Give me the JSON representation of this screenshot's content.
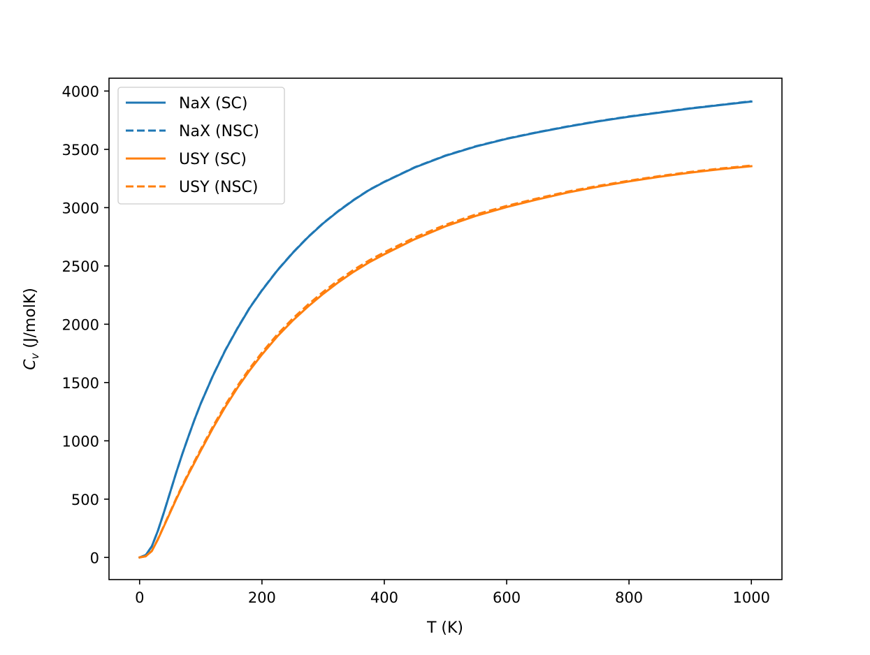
{
  "chart_data": {
    "type": "line",
    "xlabel": "T (K)",
    "ylabel_main": "C",
    "ylabel_sub": "v",
    "ylabel_rest": " (J/molK)",
    "xlim": [
      -50,
      1050
    ],
    "ylim": [
      -190,
      4110
    ],
    "xticks": [
      0,
      200,
      400,
      600,
      800,
      1000
    ],
    "yticks": [
      0,
      500,
      1000,
      1500,
      2000,
      2500,
      3000,
      3500,
      4000
    ],
    "legend_position": "upper left",
    "x": [
      0,
      10,
      20,
      30,
      40,
      50,
      60,
      70,
      80,
      90,
      100,
      120,
      140,
      160,
      180,
      200,
      225,
      250,
      275,
      300,
      325,
      350,
      375,
      400,
      450,
      500,
      550,
      600,
      650,
      700,
      750,
      800,
      850,
      900,
      950,
      1000
    ],
    "series": [
      {
        "name": "NaX (SC)",
        "color": "#1f77b4",
        "dashed": false,
        "values": [
          0,
          20,
          95,
          230,
          390,
          560,
          730,
          890,
          1040,
          1185,
          1320,
          1560,
          1775,
          1965,
          2140,
          2290,
          2460,
          2610,
          2745,
          2865,
          2970,
          3065,
          3150,
          3220,
          3345,
          3445,
          3525,
          3590,
          3645,
          3695,
          3740,
          3780,
          3815,
          3850,
          3880,
          3910
        ]
      },
      {
        "name": "NaX (NSC)",
        "color": "#1f77b4",
        "dashed": true,
        "values": [
          0,
          20,
          95,
          230,
          390,
          560,
          730,
          890,
          1040,
          1185,
          1320,
          1562,
          1777,
          1967,
          2142,
          2292,
          2462,
          2612,
          2747,
          2867,
          2972,
          3067,
          3152,
          3222,
          3347,
          3447,
          3527,
          3592,
          3647,
          3697,
          3742,
          3782,
          3817,
          3852,
          3882,
          3912
        ]
      },
      {
        "name": "USY (SC)",
        "color": "#ff7f0e",
        "dashed": false,
        "values": [
          0,
          10,
          55,
          155,
          270,
          385,
          500,
          610,
          715,
          815,
          915,
          1110,
          1290,
          1455,
          1605,
          1740,
          1895,
          2030,
          2150,
          2260,
          2360,
          2450,
          2530,
          2600,
          2730,
          2840,
          2930,
          3005,
          3070,
          3130,
          3180,
          3225,
          3265,
          3300,
          3330,
          3355
        ]
      },
      {
        "name": "USY (NSC)",
        "color": "#ff7f0e",
        "dashed": true,
        "values": [
          0,
          10,
          55,
          158,
          275,
          392,
          508,
          620,
          726,
          828,
          928,
          1125,
          1306,
          1472,
          1622,
          1757,
          1912,
          2047,
          2167,
          2277,
          2377,
          2467,
          2547,
          2617,
          2745,
          2853,
          2942,
          3015,
          3079,
          3138,
          3187,
          3231,
          3271,
          3306,
          3336,
          3361
        ]
      }
    ]
  }
}
